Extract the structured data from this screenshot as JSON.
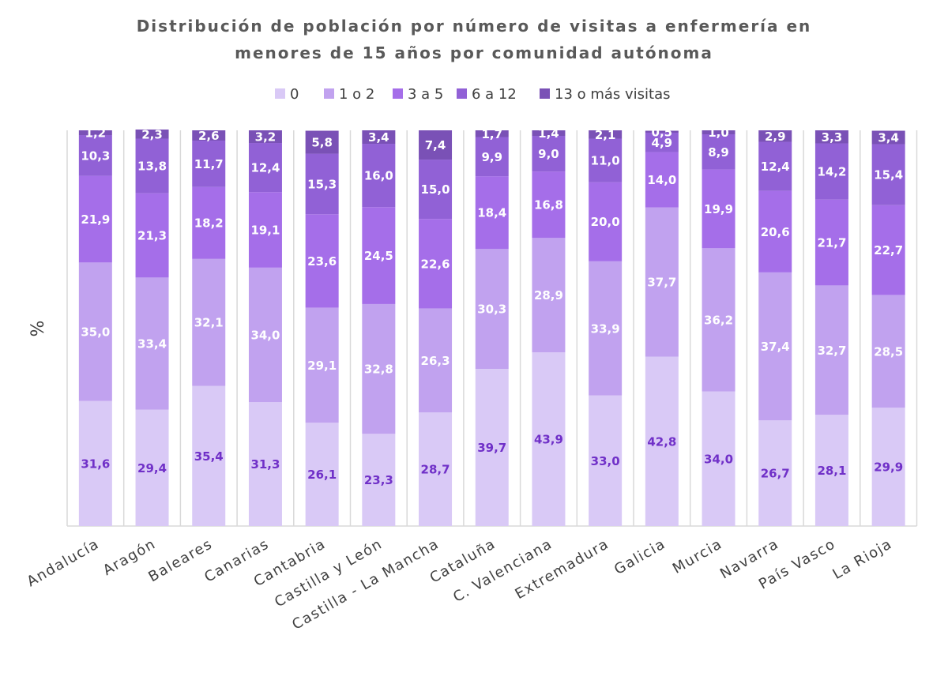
{
  "chart_data": {
    "type": "bar",
    "stacked": true,
    "title_lines": [
      "Distribución de población por número de visitas a enfermería en",
      "menores de 15 años por comunidad autónoma"
    ],
    "xlabel": "",
    "ylabel": "%",
    "ylim": [
      0,
      100
    ],
    "legend_position": "top",
    "grid": "vertical separators",
    "categories": [
      "Andalucía",
      "Aragón",
      "Baleares",
      "Canarias",
      "Cantabria",
      "Castilla y León",
      "Castilla - La Mancha",
      "Cataluña",
      "C. Valenciana",
      "Extremadura",
      "Galicia",
      "Murcia",
      "Navarra",
      "País Vasco",
      "La Rioja"
    ],
    "series": [
      {
        "name": "0",
        "color": "#d9c9f6",
        "label_color": "#7030c8",
        "values": [
          31.6,
          29.4,
          35.4,
          31.3,
          26.1,
          23.3,
          28.7,
          39.7,
          43.9,
          33.0,
          42.8,
          34.0,
          26.7,
          28.1,
          29.9
        ]
      },
      {
        "name": "1 o 2",
        "color": "#c1a2ef",
        "label_color": "#ffffff",
        "values": [
          35.0,
          33.4,
          32.1,
          34.0,
          29.1,
          32.8,
          26.3,
          30.3,
          28.9,
          33.9,
          37.7,
          36.2,
          37.4,
          32.7,
          28.5
        ]
      },
      {
        "name": "3 a 5",
        "color": "#a56ee9",
        "label_color": "#ffffff",
        "values": [
          21.9,
          21.3,
          18.2,
          19.1,
          23.6,
          24.5,
          22.6,
          18.4,
          16.8,
          20.0,
          14.0,
          19.9,
          20.6,
          21.7,
          22.7
        ]
      },
      {
        "name": "6 a 12",
        "color": "#9161d6",
        "label_color": "#ffffff",
        "values": [
          10.3,
          13.8,
          11.7,
          12.4,
          15.3,
          16.0,
          15.0,
          9.9,
          9.0,
          11.0,
          4.9,
          8.9,
          12.4,
          14.2,
          15.4
        ]
      },
      {
        "name": "13 o más visitas",
        "color": "#7a51b6",
        "label_color": "#ffffff",
        "values": [
          1.2,
          2.3,
          2.6,
          3.2,
          5.8,
          3.4,
          7.4,
          1.7,
          1.4,
          2.1,
          0.5,
          1.0,
          2.9,
          3.3,
          3.4
        ]
      }
    ]
  }
}
